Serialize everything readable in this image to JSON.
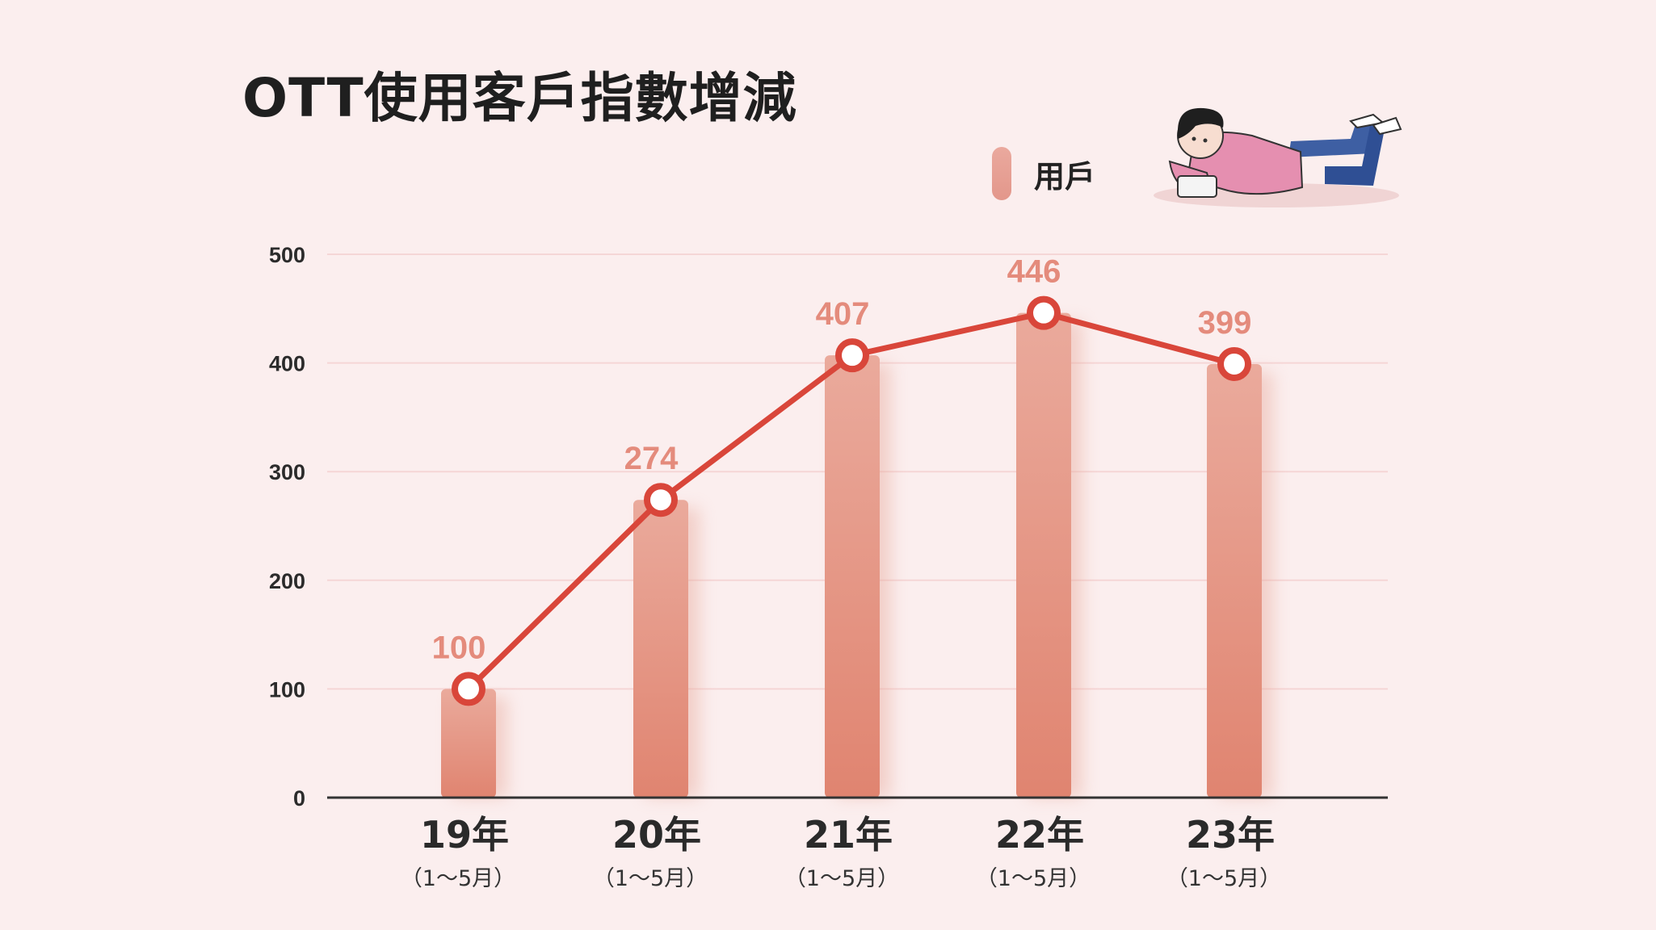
{
  "title": "OTT使用客戶指數增減",
  "legend": {
    "label": "用戶"
  },
  "colors": {
    "background": "#fbeeee",
    "bar_top": "#eaaa9c",
    "bar_bottom": "#e08470",
    "line": "#d9463a",
    "label": "#e48b7c",
    "grid": "#f5d6d6",
    "axis": "#333333"
  },
  "chart_data": {
    "type": "bar",
    "categories": [
      "19年",
      "20年",
      "21年",
      "22年",
      "23年"
    ],
    "category_sublabels": [
      "（1～5月）",
      "（1～5月）",
      "（1～5月）",
      "（1～5月）",
      "（1～5月）"
    ],
    "series": [
      {
        "name": "用戶",
        "type": "bar",
        "values": [
          100,
          274,
          407,
          446,
          399
        ]
      },
      {
        "type": "line",
        "values": [
          100,
          274,
          407,
          446,
          399
        ]
      }
    ],
    "data_labels": [
      "100",
      "274",
      "407",
      "446",
      "399"
    ],
    "yticks": [
      0,
      100,
      200,
      300,
      400,
      500
    ],
    "ylim": [
      0,
      500
    ],
    "grid": true,
    "legend_position": "top-right"
  }
}
